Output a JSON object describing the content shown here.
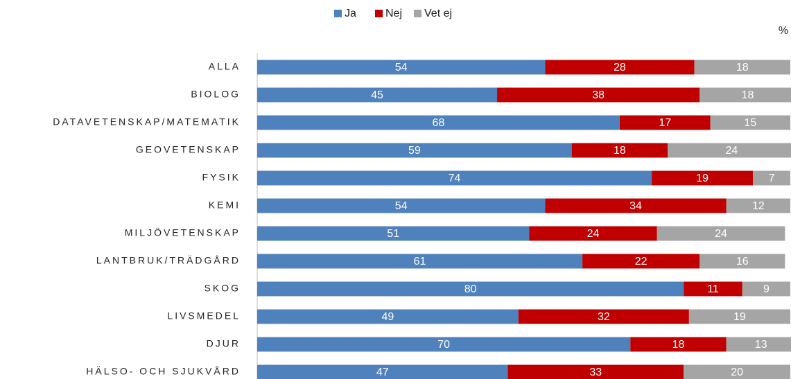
{
  "chart_data": {
    "type": "stacked_barh",
    "annotation": "%",
    "categories": [
      "ALLA",
      "BIOLOG",
      "DATAVETENSKAP/MATEMATIK",
      "GEOVETENSKAP",
      "FYSIK",
      "KEMI",
      "MILJÖVETENSKAP",
      "LANTBRUK/TRÄDGÅRD",
      "SKOG",
      "LIVSMEDEL",
      "DJUR",
      "HÄLSO- OCH SJUKVÅRD"
    ],
    "series": [
      {
        "name": "Ja",
        "color": "#4f81bd",
        "values": [
          54,
          45,
          68,
          59,
          74,
          54,
          51,
          61,
          80,
          49,
          70,
          47
        ]
      },
      {
        "name": "Nej",
        "color": "#c00000",
        "values": [
          28,
          38,
          17,
          18,
          19,
          34,
          24,
          22,
          11,
          32,
          18,
          33
        ]
      },
      {
        "name": "Vet ej",
        "color": "#a5a5a5",
        "values": [
          18,
          18,
          15,
          24,
          7,
          12,
          24,
          16,
          9,
          19,
          13,
          20
        ]
      }
    ],
    "xlim": [
      0,
      100
    ],
    "legend": "top"
  }
}
